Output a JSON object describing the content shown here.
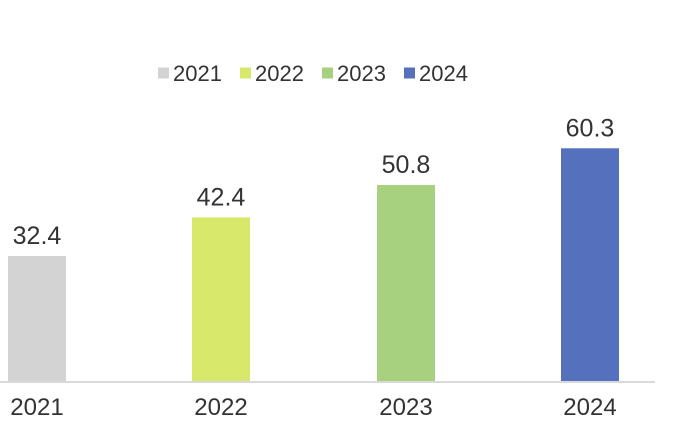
{
  "chart_data": {
    "type": "bar",
    "title": "",
    "xlabel": "",
    "ylabel": "",
    "categories": [
      "2021",
      "2022",
      "2023",
      "2024"
    ],
    "values": [
      32.4,
      42.4,
      50.8,
      60.3
    ],
    "colors": [
      "#d3d3d3",
      "#d8e86a",
      "#a8d17f",
      "#5570bd"
    ],
    "legend": {
      "placement": "top-center",
      "entries": [
        {
          "label": "2021",
          "color": "#d3d3d3"
        },
        {
          "label": "2022",
          "color": "#d8e86a"
        },
        {
          "label": "2023",
          "color": "#a8d17f"
        },
        {
          "label": "2024",
          "color": "#5570bd"
        }
      ]
    },
    "ylim": [
      0,
      64
    ],
    "grid": false,
    "data_labels": true,
    "axis_color": "#d9d9d9"
  }
}
